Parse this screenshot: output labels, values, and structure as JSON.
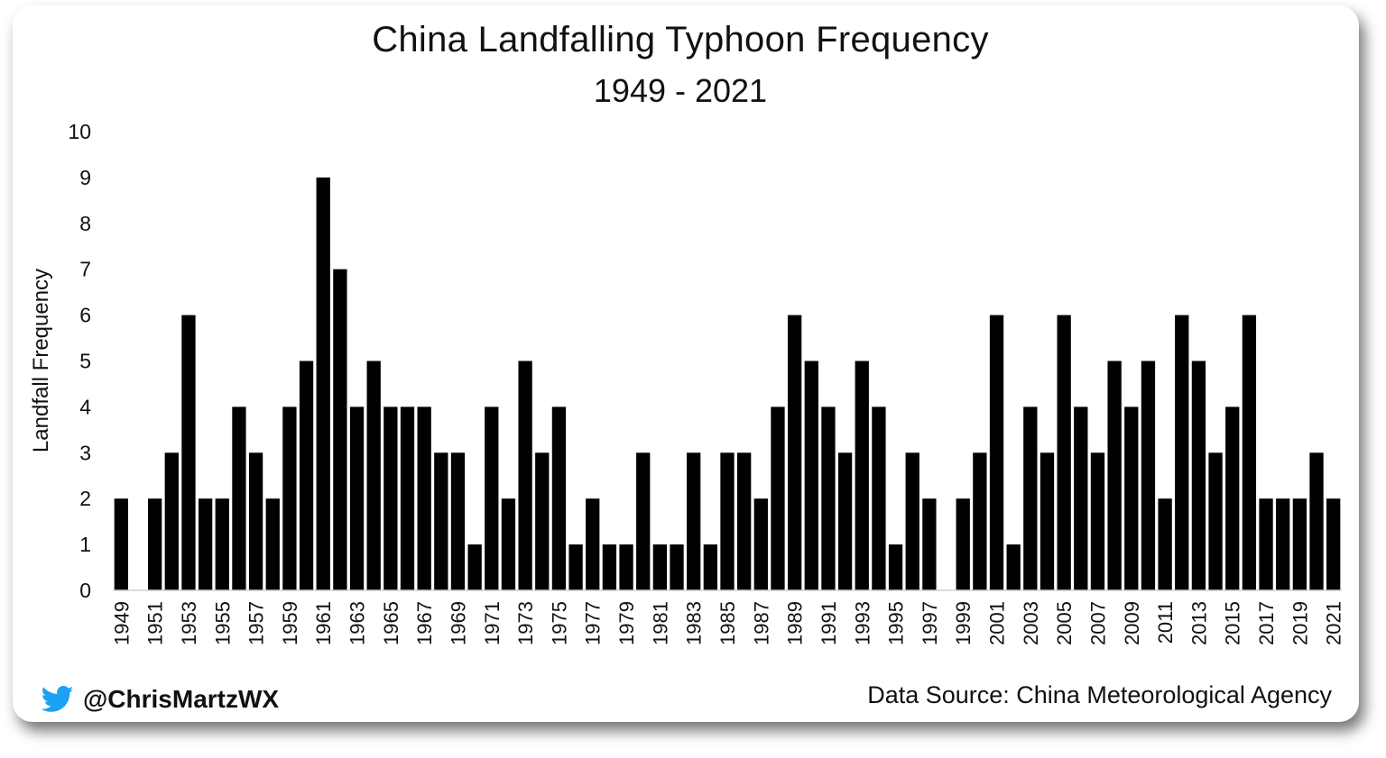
{
  "chart_data": {
    "type": "bar",
    "title": "China Landfalling Typhoon Frequency",
    "subtitle": "1949 - 2021",
    "xlabel": "",
    "ylabel": "Landfall Frequency",
    "ylim": [
      0,
      10
    ],
    "yticks": [
      "0",
      "1",
      "2",
      "3",
      "4",
      "5",
      "6",
      "7",
      "8",
      "9",
      "10"
    ],
    "grid": false,
    "bar_color": "#000000",
    "categories": [
      "1949",
      "1950",
      "1951",
      "1952",
      "1953",
      "1954",
      "1955",
      "1956",
      "1957",
      "1958",
      "1959",
      "1960",
      "1961",
      "1962",
      "1963",
      "1964",
      "1965",
      "1966",
      "1967",
      "1968",
      "1969",
      "1970",
      "1971",
      "1972",
      "1973",
      "1974",
      "1975",
      "1976",
      "1977",
      "1978",
      "1979",
      "1980",
      "1981",
      "1982",
      "1983",
      "1984",
      "1985",
      "1986",
      "1987",
      "1988",
      "1989",
      "1990",
      "1991",
      "1992",
      "1993",
      "1994",
      "1995",
      "1996",
      "1997",
      "1998",
      "1999",
      "2000",
      "2001",
      "2002",
      "2003",
      "2004",
      "2005",
      "2006",
      "2007",
      "2008",
      "2009",
      "2010",
      "2011",
      "2012",
      "2013",
      "2014",
      "2015",
      "2016",
      "2017",
      "2018",
      "2019",
      "2020",
      "2021"
    ],
    "values": [
      2,
      0,
      2,
      3,
      6,
      2,
      2,
      4,
      3,
      2,
      4,
      5,
      9,
      7,
      4,
      5,
      4,
      4,
      4,
      3,
      3,
      1,
      4,
      2,
      5,
      3,
      4,
      1,
      2,
      1,
      1,
      3,
      1,
      1,
      3,
      1,
      3,
      3,
      2,
      4,
      6,
      5,
      4,
      3,
      5,
      4,
      1,
      3,
      2,
      0,
      2,
      3,
      6,
      1,
      4,
      3,
      6,
      4,
      3,
      5,
      4,
      5,
      2,
      6,
      5,
      3,
      4,
      6,
      2,
      2,
      2,
      3,
      2
    ],
    "tick_labels": [
      "1949",
      "1951",
      "1953",
      "1955",
      "1957",
      "1959",
      "1961",
      "1963",
      "1965",
      "1967",
      "1969",
      "1971",
      "1973",
      "1975",
      "1977",
      "1979",
      "1981",
      "1983",
      "1985",
      "1987",
      "1989",
      "1991",
      "1993",
      "1995",
      "1997",
      "1999",
      "2001",
      "2003",
      "2005",
      "2007",
      "2009",
      "2011",
      "2013",
      "2015",
      "2017",
      "2019",
      "2021"
    ]
  },
  "footer": {
    "handle": "@ChrisMartzWX",
    "source": "Data Source: China Meteorological Agency",
    "twitter_color": "#1DA1F2"
  }
}
